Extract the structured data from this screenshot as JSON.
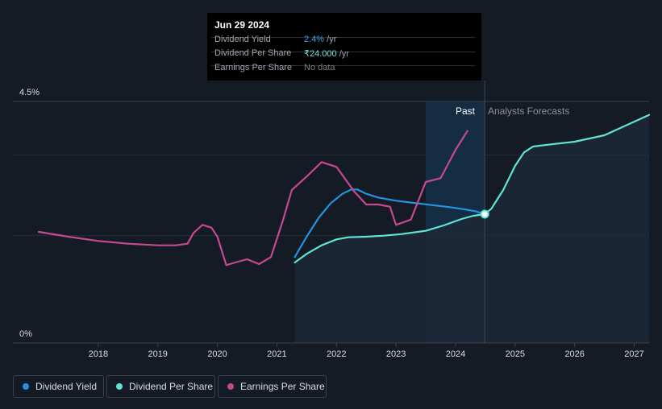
{
  "tooltip": {
    "date": "Jun 29 2024",
    "rows": [
      {
        "label": "Dividend Yield",
        "value": "2.4%",
        "unit": " /yr"
      },
      {
        "label": "Dividend Per Share",
        "value": "₹24.000",
        "unit": " /yr"
      },
      {
        "label": "Earnings Per Share",
        "value": "No data",
        "unit": ""
      }
    ]
  },
  "legend": [
    {
      "label": "Dividend Yield",
      "color": "#2394df"
    },
    {
      "label": "Dividend Per Share",
      "color": "#61e3d4"
    },
    {
      "label": "Earnings Per Share",
      "color": "#c5498e"
    }
  ],
  "colors": {
    "background": "#151b24",
    "forecast_area": "#1b2836",
    "past_band": "#16344e"
  },
  "chart_data": {
    "type": "line",
    "ylim": [
      0,
      4.5
    ],
    "y_ticks": [
      {
        "label": "4.5%",
        "value": 4.5
      },
      {
        "label": "0%",
        "value": 0
      }
    ],
    "x_ticks": [
      "2018",
      "2019",
      "2020",
      "2021",
      "2022",
      "2023",
      "2024",
      "2025",
      "2026",
      "2027"
    ],
    "xlim": [
      2017.0,
      2027.25
    ],
    "past_band": [
      2023.5,
      2024.49
    ],
    "divider_x": 2024.49,
    "region_labels": {
      "past": "Past",
      "forecast": "Analysts Forecasts"
    },
    "marker": {
      "x": 2024.49,
      "y": 2.4
    },
    "grid": true,
    "legend_position": "bottom-left",
    "series": [
      {
        "name": "Dividend Yield",
        "color": "#2394df",
        "x": [
          2021.3,
          2021.5,
          2021.7,
          2021.9,
          2022.1,
          2022.25,
          2022.35,
          2022.5,
          2022.7,
          2023.0,
          2023.3,
          2023.6,
          2023.9,
          2024.15,
          2024.35,
          2024.49
        ],
        "y": [
          1.6,
          1.98,
          2.33,
          2.6,
          2.78,
          2.86,
          2.86,
          2.78,
          2.71,
          2.65,
          2.61,
          2.57,
          2.53,
          2.49,
          2.45,
          2.4
        ]
      },
      {
        "name": "Dividend Per Share",
        "color": "#61e3d4",
        "x": [
          2021.3,
          2021.5,
          2021.75,
          2022.0,
          2022.2,
          2022.5,
          2022.8,
          2023.1,
          2023.5,
          2023.8,
          2024.1,
          2024.3,
          2024.49,
          2024.6,
          2024.8,
          2025.0,
          2025.15,
          2025.3,
          2025.6,
          2026.0,
          2026.5,
          2027.25
        ],
        "y": [
          1.5,
          1.66,
          1.82,
          1.93,
          1.97,
          1.98,
          2.0,
          2.03,
          2.09,
          2.19,
          2.31,
          2.37,
          2.4,
          2.5,
          2.85,
          3.3,
          3.55,
          3.66,
          3.7,
          3.75,
          3.87,
          4.25
        ]
      },
      {
        "name": "Earnings Per Share",
        "color": "#c5498e",
        "x": [
          2017.0,
          2017.5,
          2018.0,
          2018.5,
          2019.0,
          2019.3,
          2019.5,
          2019.6,
          2019.75,
          2019.9,
          2020.0,
          2020.15,
          2020.3,
          2020.5,
          2020.7,
          2020.9,
          2021.1,
          2021.25,
          2021.5,
          2021.75,
          2022.0,
          2022.3,
          2022.5,
          2022.7,
          2022.9,
          2023.0,
          2023.25,
          2023.5,
          2023.75,
          2024.0,
          2024.2
        ],
        "y": [
          2.07,
          1.98,
          1.9,
          1.85,
          1.82,
          1.82,
          1.85,
          2.05,
          2.2,
          2.15,
          1.98,
          1.45,
          1.5,
          1.56,
          1.47,
          1.6,
          2.28,
          2.85,
          3.1,
          3.37,
          3.28,
          2.82,
          2.58,
          2.58,
          2.54,
          2.2,
          2.3,
          3.0,
          3.07,
          3.6,
          3.95
        ]
      }
    ]
  }
}
